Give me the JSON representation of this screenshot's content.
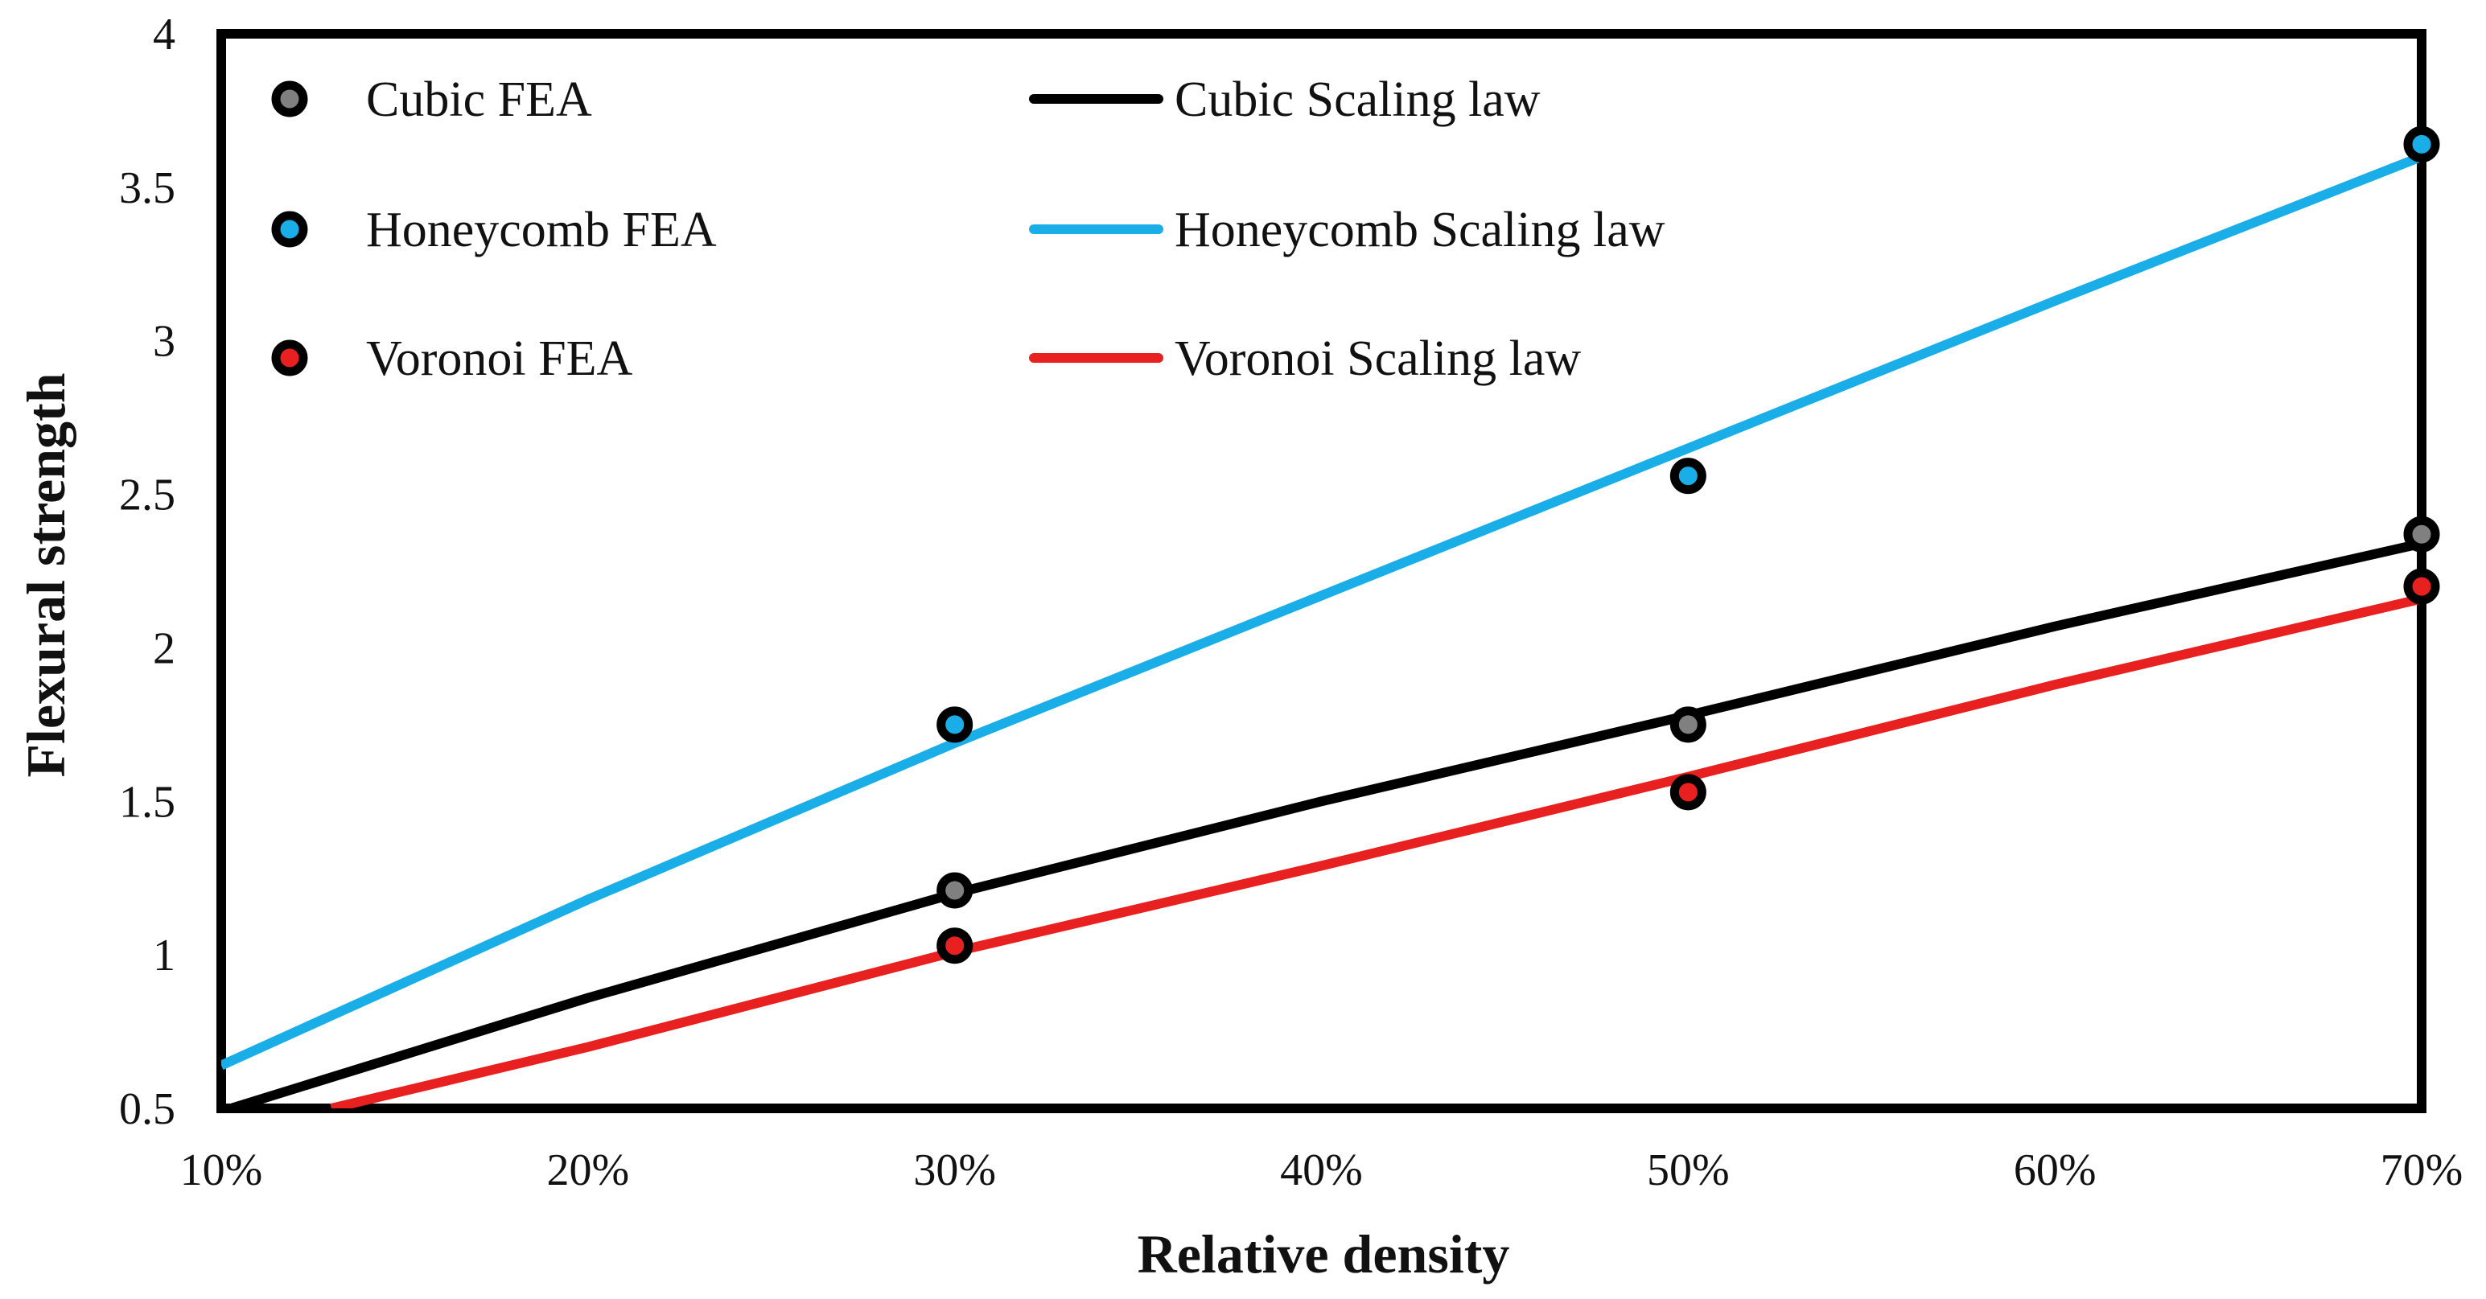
{
  "chart_data": {
    "type": "line",
    "title": "",
    "xlabel": "Relative density",
    "ylabel": "Flexural strength",
    "xlim": [
      0.1,
      0.7
    ],
    "ylim": [
      0.5,
      4
    ],
    "x_ticks": [
      0.1,
      0.2,
      0.3,
      0.4,
      0.5,
      0.6,
      0.7
    ],
    "x_tick_labels": [
      "10%",
      "20%",
      "30%",
      "40%",
      "50%",
      "60%",
      "70%"
    ],
    "y_ticks": [
      0.5,
      1,
      1.5,
      2,
      2.5,
      3,
      3.5,
      4
    ],
    "y_tick_labels": [
      "0.5",
      "1",
      "1.5",
      "2",
      "2.5",
      "3",
      "3.5",
      "4"
    ],
    "grid": false,
    "legend_position": "top-left",
    "series": [
      {
        "name": "Cubic FEA",
        "kind": "scatter",
        "color": "#808080",
        "x": [
          0.3,
          0.5,
          0.7
        ],
        "y": [
          1.21,
          1.75,
          2.37
        ]
      },
      {
        "name": "Honeycomb FEA",
        "kind": "scatter",
        "color": "#1aaee8",
        "x": [
          0.3,
          0.5,
          0.7
        ],
        "y": [
          1.75,
          2.56,
          3.64
        ]
      },
      {
        "name": "Voronoi FEA",
        "kind": "scatter",
        "color": "#e82020",
        "x": [
          0.3,
          0.5,
          0.7
        ],
        "y": [
          1.03,
          1.53,
          2.2
        ]
      },
      {
        "name": "Cubic Scaling law",
        "kind": "line",
        "color": "#000000",
        "x": [
          0.1,
          0.2,
          0.3,
          0.4,
          0.5,
          0.6,
          0.7
        ],
        "y": [
          0.49,
          0.86,
          1.2,
          1.5,
          1.78,
          2.07,
          2.34
        ]
      },
      {
        "name": "Honeycomb Scaling law",
        "kind": "line",
        "color": "#1aaee8",
        "x": [
          0.1,
          0.2,
          0.3,
          0.4,
          0.5,
          0.6,
          0.7
        ],
        "y": [
          0.64,
          1.18,
          1.69,
          2.17,
          2.65,
          3.13,
          3.6
        ]
      },
      {
        "name": "Voronoi Scaling law",
        "kind": "line",
        "color": "#e82020",
        "x": [
          0.13,
          0.2,
          0.3,
          0.4,
          0.5,
          0.6,
          0.7
        ],
        "y": [
          0.5,
          0.7,
          1.01,
          1.29,
          1.58,
          1.88,
          2.16
        ]
      }
    ]
  }
}
